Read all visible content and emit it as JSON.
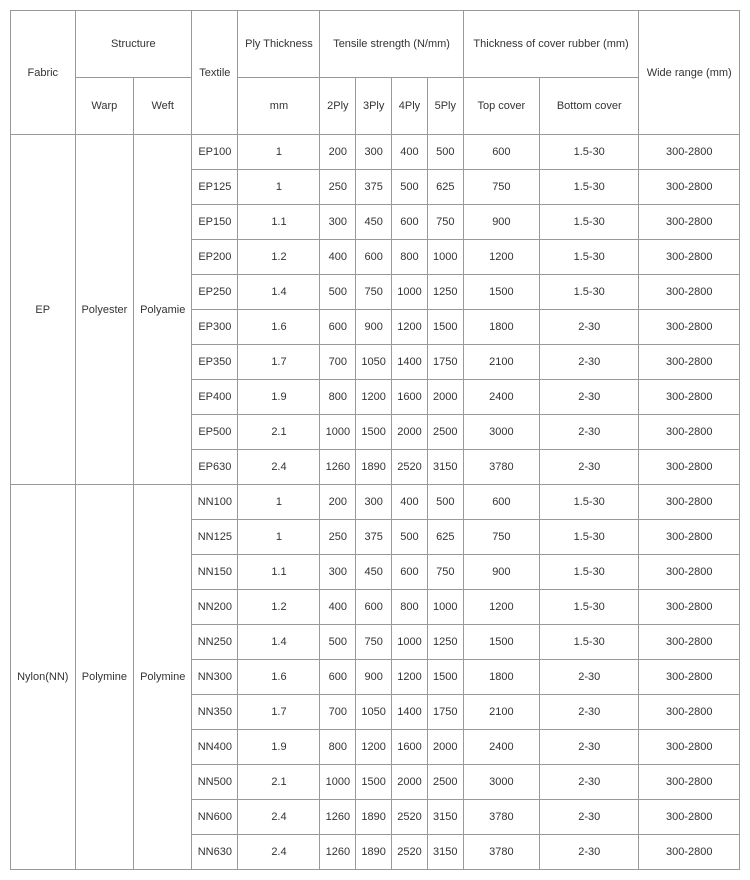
{
  "headers": {
    "fabric": "Fabric",
    "structure": "Structure",
    "textile": "Textile",
    "ply_thickness": "Ply Thickness",
    "tensile_strength": "Tensile strength (N/mm)",
    "cover_thickness": "Thickness of cover rubber (mm)",
    "wide_range": "Wide range (mm)",
    "warp": "Warp",
    "weft": "Weft",
    "mm": "mm",
    "p2": "2Ply",
    "p3": "3Ply",
    "p4": "4Ply",
    "p5": "5Ply",
    "top_cover": "Top cover",
    "bottom_cover": "Bottom cover"
  },
  "groups": [
    {
      "fabric": "EP",
      "warp": "Polyester",
      "weft": "Polyamie",
      "rows": [
        {
          "textile": "EP100",
          "ply": "1",
          "p2": "200",
          "p3": "300",
          "p4": "400",
          "p5": "500",
          "top": "600",
          "bottom": "1.5-30",
          "range": "300-2800"
        },
        {
          "textile": "EP125",
          "ply": "1",
          "p2": "250",
          "p3": "375",
          "p4": "500",
          "p5": "625",
          "top": "750",
          "bottom": "1.5-30",
          "range": "300-2800"
        },
        {
          "textile": "EP150",
          "ply": "1.1",
          "p2": "300",
          "p3": "450",
          "p4": "600",
          "p5": "750",
          "top": "900",
          "bottom": "1.5-30",
          "range": "300-2800"
        },
        {
          "textile": "EP200",
          "ply": "1.2",
          "p2": "400",
          "p3": "600",
          "p4": "800",
          "p5": "1000",
          "top": "1200",
          "bottom": "1.5-30",
          "range": "300-2800"
        },
        {
          "textile": "EP250",
          "ply": "1.4",
          "p2": "500",
          "p3": "750",
          "p4": "1000",
          "p5": "1250",
          "top": "1500",
          "bottom": "1.5-30",
          "range": "300-2800"
        },
        {
          "textile": "EP300",
          "ply": "1.6",
          "p2": "600",
          "p3": "900",
          "p4": "1200",
          "p5": "1500",
          "top": "1800",
          "bottom": "2-30",
          "range": "300-2800"
        },
        {
          "textile": "EP350",
          "ply": "1.7",
          "p2": "700",
          "p3": "1050",
          "p4": "1400",
          "p5": "1750",
          "top": "2100",
          "bottom": "2-30",
          "range": "300-2800"
        },
        {
          "textile": "EP400",
          "ply": "1.9",
          "p2": "800",
          "p3": "1200",
          "p4": "1600",
          "p5": "2000",
          "top": "2400",
          "bottom": "2-30",
          "range": "300-2800"
        },
        {
          "textile": "EP500",
          "ply": "2.1",
          "p2": "1000",
          "p3": "1500",
          "p4": "2000",
          "p5": "2500",
          "top": "3000",
          "bottom": "2-30",
          "range": "300-2800"
        },
        {
          "textile": "EP630",
          "ply": "2.4",
          "p2": "1260",
          "p3": "1890",
          "p4": "2520",
          "p5": "3150",
          "top": "3780",
          "bottom": "2-30",
          "range": "300-2800"
        }
      ]
    },
    {
      "fabric": "Nylon(NN)",
      "warp": "Polymine",
      "weft": "Polymine",
      "rows": [
        {
          "textile": "NN100",
          "ply": "1",
          "p2": "200",
          "p3": "300",
          "p4": "400",
          "p5": "500",
          "top": "600",
          "bottom": "1.5-30",
          "range": "300-2800"
        },
        {
          "textile": "NN125",
          "ply": "1",
          "p2": "250",
          "p3": "375",
          "p4": "500",
          "p5": "625",
          "top": "750",
          "bottom": "1.5-30",
          "range": "300-2800"
        },
        {
          "textile": "NN150",
          "ply": "1.1",
          "p2": "300",
          "p3": "450",
          "p4": "600",
          "p5": "750",
          "top": "900",
          "bottom": "1.5-30",
          "range": "300-2800"
        },
        {
          "textile": "NN200",
          "ply": "1.2",
          "p2": "400",
          "p3": "600",
          "p4": "800",
          "p5": "1000",
          "top": "1200",
          "bottom": "1.5-30",
          "range": "300-2800"
        },
        {
          "textile": "NN250",
          "ply": "1.4",
          "p2": "500",
          "p3": "750",
          "p4": "1000",
          "p5": "1250",
          "top": "1500",
          "bottom": "1.5-30",
          "range": "300-2800"
        },
        {
          "textile": "NN300",
          "ply": "1.6",
          "p2": "600",
          "p3": "900",
          "p4": "1200",
          "p5": "1500",
          "top": "1800",
          "bottom": "2-30",
          "range": "300-2800"
        },
        {
          "textile": "NN350",
          "ply": "1.7",
          "p2": "700",
          "p3": "1050",
          "p4": "1400",
          "p5": "1750",
          "top": "2100",
          "bottom": "2-30",
          "range": "300-2800"
        },
        {
          "textile": "NN400",
          "ply": "1.9",
          "p2": "800",
          "p3": "1200",
          "p4": "1600",
          "p5": "2000",
          "top": "2400",
          "bottom": "2-30",
          "range": "300-2800"
        },
        {
          "textile": "NN500",
          "ply": "2.1",
          "p2": "1000",
          "p3": "1500",
          "p4": "2000",
          "p5": "2500",
          "top": "3000",
          "bottom": "2-30",
          "range": "300-2800"
        },
        {
          "textile": "NN600",
          "ply": "2.4",
          "p2": "1260",
          "p3": "1890",
          "p4": "2520",
          "p5": "3150",
          "top": "3780",
          "bottom": "2-30",
          "range": "300-2800"
        },
        {
          "textile": "NN630",
          "ply": "2.4",
          "p2": "1260",
          "p3": "1890",
          "p4": "2520",
          "p5": "3150",
          "top": "3780",
          "bottom": "2-30",
          "range": "300-2800"
        }
      ]
    }
  ]
}
